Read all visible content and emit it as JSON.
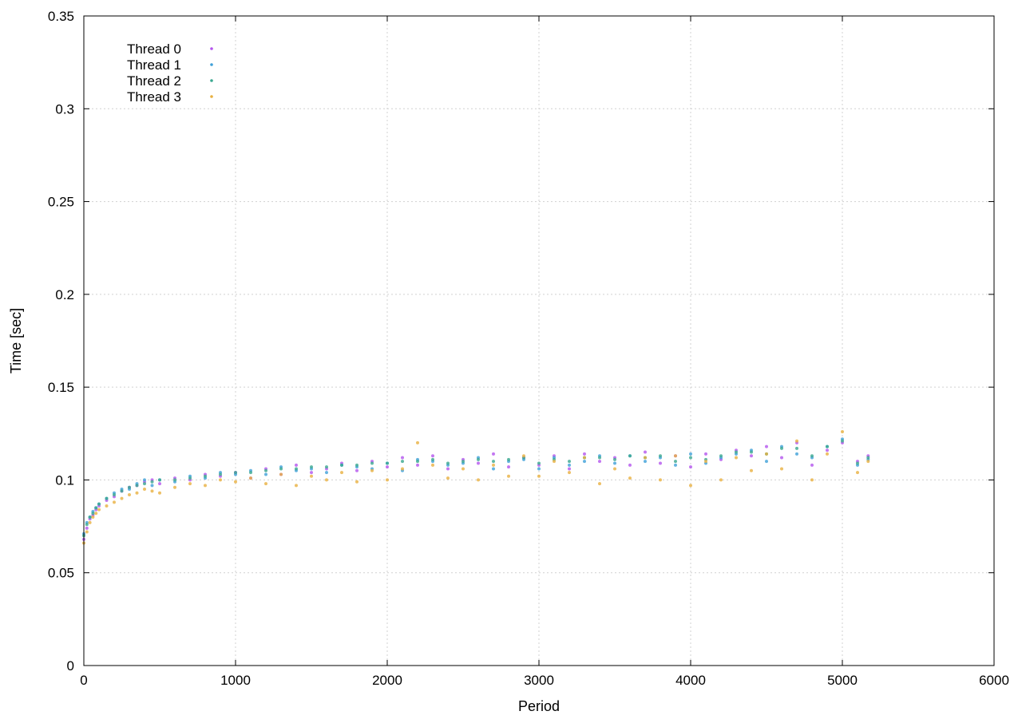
{
  "chart_data": {
    "type": "scatter",
    "xlabel": "Period",
    "ylabel": "Time [sec]",
    "xlim": [
      0,
      6000
    ],
    "ylim": [
      0,
      0.35
    ],
    "grid": true,
    "legend_position": "top-left",
    "x_ticks": [
      0,
      1000,
      2000,
      3000,
      4000,
      5000,
      6000
    ],
    "x_tick_labels": [
      "0",
      "1000",
      "2000",
      "3000",
      "4000",
      "5000",
      "6000"
    ],
    "y_ticks": [
      0,
      0.05,
      0.1,
      0.15,
      0.2,
      0.25,
      0.3,
      0.35
    ],
    "y_tick_labels": [
      "0",
      "0.05",
      "0.1",
      "0.15",
      "0.2",
      "0.25",
      "0.3",
      "0.35"
    ],
    "series": [
      {
        "name": "Thread 0",
        "color": "#b455ee",
        "x": [
          0,
          20,
          40,
          60,
          80,
          100,
          150,
          200,
          250,
          300,
          350,
          400,
          450,
          500,
          600,
          700,
          800,
          900,
          1000,
          1100,
          1200,
          1300,
          1400,
          1500,
          1600,
          1700,
          1800,
          1900,
          2000,
          2100,
          2200,
          2300,
          2400,
          2500,
          2600,
          2700,
          2800,
          2900,
          3000,
          3100,
          3200,
          3300,
          3400,
          3500,
          3600,
          3700,
          3800,
          3900,
          4000,
          4100,
          4200,
          4300,
          4400,
          4500,
          4600,
          4700,
          4800,
          4900,
          5000,
          5100,
          5170
        ],
        "y": [
          0.068,
          0.074,
          0.079,
          0.081,
          0.084,
          0.086,
          0.089,
          0.091,
          0.094,
          0.096,
          0.097,
          0.099,
          0.1,
          0.098,
          0.101,
          0.1,
          0.103,
          0.102,
          0.104,
          0.101,
          0.106,
          0.103,
          0.108,
          0.104,
          0.106,
          0.109,
          0.105,
          0.11,
          0.107,
          0.112,
          0.108,
          0.113,
          0.106,
          0.111,
          0.109,
          0.114,
          0.107,
          0.112,
          0.108,
          0.113,
          0.106,
          0.114,
          0.11,
          0.112,
          0.108,
          0.115,
          0.109,
          0.113,
          0.107,
          0.114,
          0.111,
          0.116,
          0.113,
          0.118,
          0.112,
          0.12,
          0.108,
          0.116,
          0.12,
          0.11,
          0.113
        ]
      },
      {
        "name": "Thread 1",
        "color": "#3fa0d8",
        "x": [
          0,
          20,
          40,
          60,
          80,
          100,
          150,
          200,
          250,
          300,
          350,
          400,
          450,
          500,
          600,
          700,
          800,
          900,
          1000,
          1100,
          1200,
          1300,
          1400,
          1500,
          1600,
          1700,
          1800,
          1900,
          2000,
          2100,
          2200,
          2300,
          2400,
          2500,
          2600,
          2700,
          2800,
          2900,
          3000,
          3100,
          3200,
          3300,
          3400,
          3500,
          3600,
          3700,
          3800,
          3900,
          4000,
          4100,
          4200,
          4300,
          4400,
          4500,
          4600,
          4700,
          4800,
          4900,
          5000,
          5100,
          5170
        ],
        "y": [
          0.071,
          0.077,
          0.08,
          0.083,
          0.085,
          0.087,
          0.09,
          0.093,
          0.095,
          0.095,
          0.098,
          0.1,
          0.097,
          0.1,
          0.099,
          0.102,
          0.101,
          0.104,
          0.103,
          0.105,
          0.103,
          0.107,
          0.105,
          0.106,
          0.104,
          0.108,
          0.107,
          0.106,
          0.109,
          0.105,
          0.111,
          0.11,
          0.108,
          0.109,
          0.112,
          0.106,
          0.11,
          0.111,
          0.106,
          0.112,
          0.108,
          0.11,
          0.113,
          0.109,
          0.113,
          0.11,
          0.112,
          0.108,
          0.114,
          0.109,
          0.112,
          0.114,
          0.116,
          0.11,
          0.118,
          0.114,
          0.112,
          0.118,
          0.122,
          0.108,
          0.111
        ]
      },
      {
        "name": "Thread 2",
        "color": "#3aa890",
        "x": [
          0,
          20,
          40,
          60,
          80,
          100,
          150,
          200,
          250,
          300,
          350,
          400,
          450,
          500,
          600,
          700,
          800,
          900,
          1000,
          1100,
          1200,
          1300,
          1400,
          1500,
          1600,
          1700,
          1800,
          1900,
          2000,
          2100,
          2200,
          2300,
          2400,
          2500,
          2600,
          2700,
          2800,
          2900,
          3000,
          3100,
          3200,
          3300,
          3400,
          3500,
          3600,
          3700,
          3800,
          3900,
          4000,
          4100,
          4200,
          4300,
          4400,
          4500,
          4600,
          4700,
          4800,
          4900,
          5000,
          5100,
          5170
        ],
        "y": [
          0.07,
          0.076,
          0.08,
          0.082,
          0.085,
          0.087,
          0.09,
          0.092,
          0.094,
          0.096,
          0.097,
          0.098,
          0.099,
          0.1,
          0.1,
          0.101,
          0.102,
          0.103,
          0.104,
          0.104,
          0.105,
          0.106,
          0.106,
          0.107,
          0.107,
          0.108,
          0.108,
          0.109,
          0.109,
          0.11,
          0.11,
          0.111,
          0.109,
          0.11,
          0.111,
          0.11,
          0.111,
          0.112,
          0.109,
          0.111,
          0.11,
          0.112,
          0.112,
          0.111,
          0.113,
          0.112,
          0.113,
          0.11,
          0.112,
          0.111,
          0.113,
          0.115,
          0.115,
          0.114,
          0.117,
          0.117,
          0.113,
          0.118,
          0.121,
          0.109,
          0.112
        ]
      },
      {
        "name": "Thread 3",
        "color": "#e8b040",
        "x": [
          0,
          20,
          40,
          60,
          80,
          100,
          150,
          200,
          250,
          300,
          350,
          400,
          450,
          500,
          600,
          700,
          800,
          900,
          1000,
          1100,
          1200,
          1300,
          1400,
          1500,
          1600,
          1700,
          1800,
          1900,
          2000,
          2100,
          2200,
          2300,
          2400,
          2500,
          2600,
          2700,
          2800,
          2900,
          3000,
          3100,
          3200,
          3300,
          3400,
          3500,
          3600,
          3700,
          3800,
          3900,
          4000,
          4100,
          4200,
          4300,
          4400,
          4500,
          4600,
          4700,
          4800,
          4900,
          5000,
          5100,
          5170
        ],
        "y": [
          0.066,
          0.072,
          0.077,
          0.08,
          0.082,
          0.084,
          0.086,
          0.088,
          0.09,
          0.092,
          0.093,
          0.095,
          0.094,
          0.093,
          0.096,
          0.098,
          0.097,
          0.1,
          0.099,
          0.101,
          0.098,
          0.103,
          0.097,
          0.102,
          0.1,
          0.104,
          0.099,
          0.105,
          0.1,
          0.106,
          0.12,
          0.108,
          0.101,
          0.106,
          0.1,
          0.108,
          0.102,
          0.113,
          0.102,
          0.11,
          0.104,
          0.112,
          0.098,
          0.106,
          0.101,
          0.112,
          0.1,
          0.113,
          0.097,
          0.11,
          0.1,
          0.112,
          0.105,
          0.114,
          0.106,
          0.121,
          0.1,
          0.114,
          0.126,
          0.104,
          0.11
        ]
      }
    ]
  }
}
